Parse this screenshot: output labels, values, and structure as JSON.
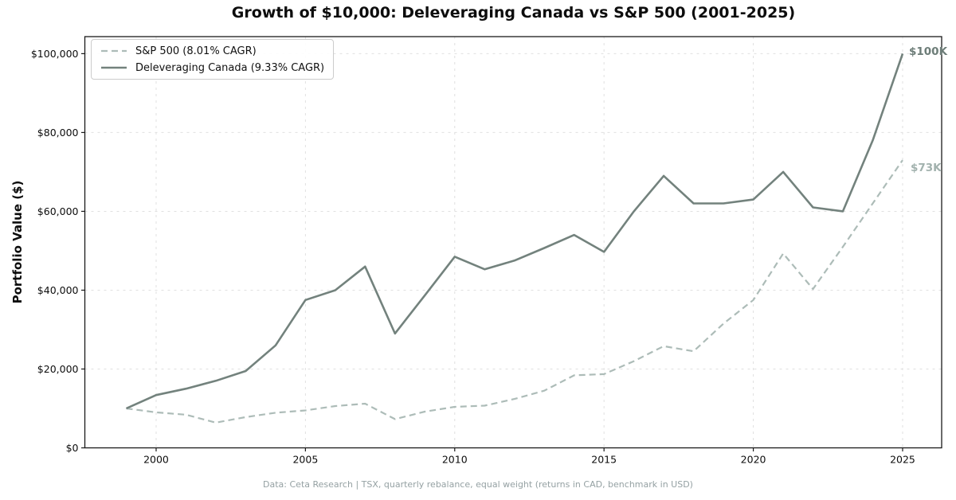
{
  "page": {
    "title": "Growth of $10,000: Deleveraging Canada vs S&P 500 (2001-2025)",
    "footer": "Data: Ceta Research | TSX, quarterly rebalance, equal weight (returns in CAD, benchmark in USD)"
  },
  "chart_data": {
    "type": "line",
    "title": "Growth of $10,000: Deleveraging Canada vs S&P 500 (2001-2025)",
    "xlabel": "",
    "ylabel": "Portfolio Value ($)",
    "x": [
      1999,
      2000,
      2001,
      2002,
      2003,
      2004,
      2005,
      2006,
      2007,
      2008,
      2009,
      2010,
      2011,
      2012,
      2013,
      2014,
      2015,
      2016,
      2017,
      2018,
      2019,
      2020,
      2021,
      2022,
      2023,
      2024,
      2025
    ],
    "series": [
      {
        "name": "S&P 500 (8.01% CAGR)",
        "style": "dashed",
        "color": "#adbcb8",
        "values": [
          10000,
          9000,
          8400,
          6400,
          7800,
          8900,
          9500,
          10600,
          11200,
          7300,
          9200,
          10400,
          10700,
          12400,
          14500,
          18400,
          18700,
          22000,
          25800,
          24500,
          31500,
          37500,
          49300,
          40300,
          51000,
          62000,
          73000
        ]
      },
      {
        "name": "Deleveraging Canada (9.33% CAGR)",
        "style": "solid",
        "color": "#73827d",
        "values": [
          10000,
          13400,
          15000,
          17000,
          19500,
          26000,
          37500,
          40000,
          46000,
          29000,
          38700,
          48500,
          45300,
          47500,
          50700,
          54000,
          49700,
          60000,
          69000,
          62000,
          62000,
          63000,
          70000,
          61000,
          60000,
          78000,
          100000
        ]
      }
    ],
    "end_labels": [
      {
        "text": "$100K",
        "color": "#6d7d78"
      },
      {
        "text": "$73K",
        "color": "#a2b2ae"
      }
    ],
    "x_ticks": [
      2000,
      2005,
      2010,
      2015,
      2020,
      2025
    ],
    "x_tick_labels": [
      "2000",
      "2005",
      "2010",
      "2015",
      "2020",
      "2025"
    ],
    "y_ticks": [
      0,
      20000,
      40000,
      60000,
      80000,
      100000
    ],
    "y_tick_labels": [
      "$0",
      "$20,000",
      "$40,000",
      "$60,000",
      "$80,000",
      "$100,000"
    ],
    "xlim": [
      1997.6,
      2026.3
    ],
    "ylim": [
      0,
      104300
    ],
    "grid": true,
    "legend_position": "upper left"
  }
}
